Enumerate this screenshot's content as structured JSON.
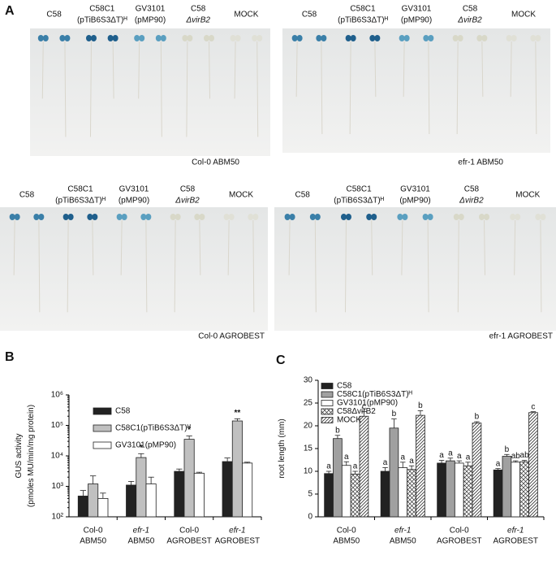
{
  "panel_labels": [
    "A",
    "B",
    "C"
  ],
  "photos": [
    {
      "caption": "Col-0 ABM50",
      "strains": [
        [
          "C58"
        ],
        [
          "C58C1",
          "(pTiB6S3ΔT)ᴴ"
        ],
        [
          "GV3101",
          "(pMP90)"
        ],
        [
          "C58",
          "ΔvirB2"
        ],
        [
          "MOCK"
        ]
      ]
    },
    {
      "caption": "efr-1 ABM50",
      "strains": [
        [
          "C58"
        ],
        [
          "C58C1",
          "(pTiB6S3ΔT)ᴴ"
        ],
        [
          "GV3101",
          "(pMP90)"
        ],
        [
          "C58",
          "ΔvirB2"
        ],
        [
          "MOCK"
        ]
      ]
    },
    {
      "caption": "Col-0 AGROBEST",
      "strains": [
        [
          "C58"
        ],
        [
          "C58C1",
          "(pTiB6S3ΔT)ᴴ"
        ],
        [
          "GV3101",
          "(pMP90)"
        ],
        [
          "C58",
          "ΔvirB2"
        ],
        [
          "MOCK"
        ]
      ]
    },
    {
      "caption": "efr-1 AGROBEST",
      "strains": [
        [
          "C58"
        ],
        [
          "C58C1",
          "(pTiB6S3ΔT)ᴴ"
        ],
        [
          "GV3101",
          "(pMP90)"
        ],
        [
          "C58",
          "ΔvirB2"
        ],
        [
          "MOCK"
        ]
      ]
    }
  ],
  "chart_data": [
    {
      "type": "bar",
      "ylabel": [
        "GUS activity",
        "(pmoles MU/min/mg protein)"
      ],
      "log_scale": true,
      "ylim": [
        100,
        1000000
      ],
      "yticks": [
        {
          "value": 100,
          "label": "10²"
        },
        {
          "value": 1000,
          "label": "10³"
        },
        {
          "value": 10000,
          "label": "10⁴"
        },
        {
          "value": 100000,
          "label": "10⁵"
        },
        {
          "value": 1000000,
          "label": "10⁶"
        }
      ],
      "categories": [
        [
          "Col-0",
          "ABM50"
        ],
        [
          "efr-1",
          "ABM50"
        ],
        [
          "Col-0",
          "AGROBEST"
        ],
        [
          "efr-1",
          "AGROBEST"
        ]
      ],
      "series": [
        {
          "name": "C58",
          "color": "#222222",
          "values": [
            480,
            1100,
            3100,
            6500
          ],
          "errors": [
            250,
            350,
            600,
            2000
          ]
        },
        {
          "name": "C58C1(pTiB6S3ΔT)ᴴ",
          "color": "#c0c0c0",
          "values": [
            1200,
            8800,
            35000,
            140000
          ],
          "errors": [
            1000,
            3000,
            10000,
            25000
          ],
          "annotations": [
            null,
            "*",
            "*",
            "**"
          ]
        },
        {
          "name": "GV3101(pMP90)",
          "color": "#ffffff",
          "values": [
            400,
            1200,
            2700,
            5800
          ],
          "errors": [
            200,
            800,
            200,
            400
          ]
        }
      ]
    },
    {
      "type": "bar",
      "ylabel": [
        "root length (mm)"
      ],
      "log_scale": false,
      "ylim": [
        0,
        30
      ],
      "yticks": [
        0,
        5,
        10,
        15,
        20,
        25,
        30
      ],
      "categories": [
        [
          "Col-0",
          "ABM50"
        ],
        [
          "efr-1",
          "ABM50"
        ],
        [
          "Col-0",
          "AGROBEST"
        ],
        [
          "efr-1",
          "AGROBEST"
        ]
      ],
      "series": [
        {
          "name": "C58",
          "color": "#222222",
          "values": [
            9.5,
            10.0,
            11.8,
            10.3
          ],
          "errors": [
            0.5,
            0.8,
            0.6,
            0.3
          ],
          "annotations": [
            "a",
            "a",
            "a",
            "a"
          ]
        },
        {
          "name": "C58C1(pTiB6S3ΔT)ᴴ",
          "color": "#a0a0a0",
          "values": [
            17.2,
            19.5,
            12.3,
            13.3
          ],
          "errors": [
            0.7,
            2.0,
            0.6,
            0.4
          ],
          "annotations": [
            "b",
            "b",
            "a",
            "b"
          ]
        },
        {
          "name": "GV3101(pMP90)",
          "color": "#ffffff",
          "values": [
            11.3,
            10.8,
            11.8,
            12.0
          ],
          "errors": [
            0.8,
            1.2,
            0.5,
            0.3
          ],
          "annotations": [
            "a",
            "a",
            "a",
            "ab"
          ]
        },
        {
          "name": "C58ΔvirB2",
          "color": "crosshatch",
          "values": [
            9.4,
            10.4,
            11.2,
            12.1
          ],
          "errors": [
            0.6,
            0.8,
            0.8,
            0.3
          ],
          "annotations": [
            "a",
            "a",
            "a",
            "ab"
          ]
        },
        {
          "name": "MOCK",
          "color": "hatch",
          "values": [
            22.1,
            22.3,
            20.6,
            22.9
          ],
          "errors": [
            1.0,
            1.0,
            0.3,
            0.2
          ],
          "annotations": [
            "c",
            "b",
            "b",
            "c"
          ]
        }
      ]
    }
  ]
}
